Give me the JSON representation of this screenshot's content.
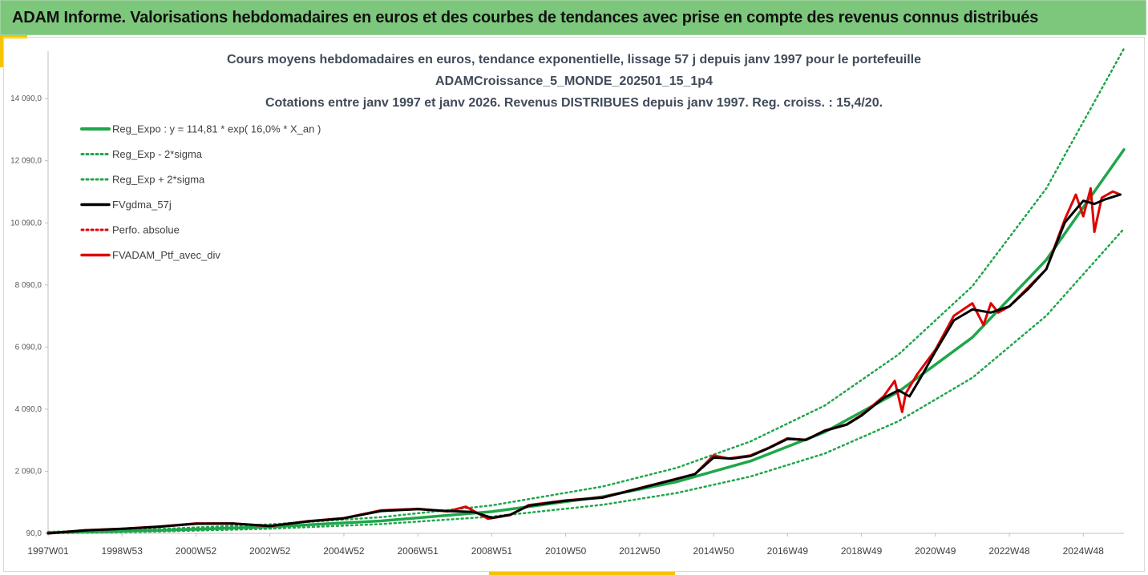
{
  "header": {
    "title": "ADAM Informe. Valorisations hebdomadaires en euros et des courbes de tendances avec prise en compte des revenus connus distribués"
  },
  "colors": {
    "banner": "#7dc77c",
    "accent": "#f5c400",
    "reg_expo": "#1fa64a",
    "sigma": "#1fa64a",
    "fvgdma": "#000000",
    "perfo": "#e00000",
    "ptf": "#e00000"
  },
  "chart_data": {
    "type": "line",
    "title_lines": [
      "Cours moyens hebdomadaires  en euros, tendance exponentielle, lissage 57 j depuis janv 1997 pour le portefeuille",
      "ADAMCroissance_5_MONDE_202501_15_1p4",
      "Cotations entre janv 1997 et janv 2026. Revenus DISTRIBUES depuis janv 1997. Reg. croiss. : 15,4/20."
    ],
    "x_range": [
      1997.0,
      2026.1
    ],
    "ylim": [
      90,
      15100
    ],
    "y_ticks": [
      {
        "value": 90,
        "label": "90,0"
      },
      {
        "value": 2090,
        "label": "2 090,0"
      },
      {
        "value": 4090,
        "label": "4 090,0"
      },
      {
        "value": 6090,
        "label": "6 090,0"
      },
      {
        "value": 8090,
        "label": "8 090,0"
      },
      {
        "value": 10090,
        "label": "10 090,0"
      },
      {
        "value": 12090,
        "label": "12 090,0"
      },
      {
        "value": 14090,
        "label": "14 090,0"
      }
    ],
    "x_ticks": [
      {
        "year": 1997.0,
        "label": "1997W01"
      },
      {
        "year": 1999.0,
        "label": "1998W53"
      },
      {
        "year": 2001.0,
        "label": "2000W52"
      },
      {
        "year": 2003.0,
        "label": "2002W52"
      },
      {
        "year": 2005.0,
        "label": "2004W52"
      },
      {
        "year": 2007.0,
        "label": "2006W51"
      },
      {
        "year": 2009.0,
        "label": "2008W51"
      },
      {
        "year": 2011.0,
        "label": "2010W50"
      },
      {
        "year": 2013.0,
        "label": "2012W50"
      },
      {
        "year": 2015.0,
        "label": "2014W50"
      },
      {
        "year": 2017.0,
        "label": "2016W49"
      },
      {
        "year": 2019.0,
        "label": "2018W49"
      },
      {
        "year": 2021.0,
        "label": "2020W49"
      },
      {
        "year": 2023.0,
        "label": "2022W48"
      },
      {
        "year": 2025.0,
        "label": "2024W48"
      }
    ],
    "legend": [
      {
        "key": "reg_expo",
        "label": "Reg_Expo : y = 114,81 * exp( 16,0% *  X_an )",
        "style": "solid-green"
      },
      {
        "key": "sigma_minus",
        "label": "Reg_Exp - 2*sigma",
        "style": "dotted-green"
      },
      {
        "key": "sigma_plus",
        "label": "Reg_Exp + 2*sigma",
        "style": "dotted-green"
      },
      {
        "key": "fvgdma",
        "label": "FVgdma_57j",
        "style": "solid-black"
      },
      {
        "key": "perfo",
        "label": "Perfo. absolue",
        "style": "dotted-red"
      },
      {
        "key": "ptf",
        "label": "FVADAM_Ptf_avec_div",
        "style": "solid-red"
      }
    ],
    "legend_position": "top-left",
    "grid": false,
    "series": [
      {
        "key": "reg_expo",
        "x": [
          1997.0,
          2000.0,
          2003.0,
          2006.0,
          2009.0,
          2012.0,
          2014.0,
          2016.0,
          2018.0,
          2020.0,
          2022.0,
          2024.0,
          2026.1
        ],
        "y": [
          115,
          185,
          300,
          490,
          790,
          1270,
          1750,
          2420,
          3350,
          4650,
          6400,
          8900,
          12450
        ]
      },
      {
        "key": "sigma_plus",
        "x": [
          1997.0,
          2000.0,
          2003.0,
          2006.0,
          2009.0,
          2012.0,
          2014.0,
          2016.0,
          2018.0,
          2020.0,
          2022.0,
          2024.0,
          2026.1
        ],
        "y": [
          140,
          230,
          380,
          610,
          990,
          1600,
          2200,
          3050,
          4200,
          5850,
          8050,
          11200,
          15700
        ]
      },
      {
        "key": "sigma_minus",
        "x": [
          1997.0,
          2000.0,
          2003.0,
          2006.0,
          2009.0,
          2012.0,
          2014.0,
          2016.0,
          2018.0,
          2020.0,
          2022.0,
          2024.0,
          2026.1
        ],
        "y": [
          90,
          150,
          240,
          390,
          630,
          1010,
          1390,
          1920,
          2660,
          3700,
          5100,
          7100,
          9900
        ]
      },
      {
        "key": "ptf",
        "x": [
          1997.0,
          1998.0,
          1999.0,
          2000.0,
          2001.0,
          2002.0,
          2003.0,
          2004.0,
          2005.0,
          2006.0,
          2007.0,
          2007.8,
          2008.3,
          2008.9,
          2009.5,
          2010.0,
          2011.0,
          2012.0,
          2013.0,
          2014.0,
          2014.5,
          2015.0,
          2015.4,
          2016.0,
          2016.5,
          2017.0,
          2017.5,
          2018.0,
          2018.6,
          2019.0,
          2019.6,
          2019.9,
          2020.1,
          2020.2,
          2020.5,
          2021.0,
          2021.5,
          2022.0,
          2022.3,
          2022.5,
          2022.7,
          2023.0,
          2023.5,
          2024.0,
          2024.5,
          2024.8,
          2025.0,
          2025.2,
          2025.3,
          2025.5,
          2025.8,
          2026.0
        ],
        "y": [
          90,
          190,
          240,
          310,
          410,
          410,
          320,
          480,
          580,
          830,
          880,
          800,
          950,
          560,
          680,
          1000,
          1150,
          1250,
          1550,
          1850,
          2000,
          2600,
          2500,
          2600,
          2850,
          3150,
          3100,
          3400,
          3600,
          3900,
          4500,
          5000,
          4000,
          4600,
          5200,
          6000,
          7100,
          7500,
          6800,
          7500,
          7200,
          7400,
          8000,
          8600,
          10200,
          11000,
          10300,
          11200,
          9800,
          10900,
          11100,
          11000
        ]
      },
      {
        "key": "fvgdma",
        "x": [
          1997.0,
          1998.0,
          1999.0,
          2000.0,
          2001.0,
          2002.0,
          2003.0,
          2004.0,
          2005.0,
          2006.0,
          2007.0,
          2007.8,
          2008.5,
          2009.0,
          2009.5,
          2010.0,
          2011.0,
          2012.0,
          2013.0,
          2014.0,
          2014.5,
          2015.0,
          2015.5,
          2016.0,
          2016.5,
          2017.0,
          2017.5,
          2018.0,
          2018.6,
          2019.0,
          2019.6,
          2020.0,
          2020.3,
          2020.6,
          2021.0,
          2021.5,
          2022.0,
          2022.5,
          2023.0,
          2023.5,
          2024.0,
          2024.5,
          2025.0,
          2025.3,
          2025.6,
          2026.0
        ],
        "y": [
          90,
          185,
          235,
          305,
          400,
          405,
          330,
          470,
          575,
          810,
          870,
          810,
          780,
          590,
          690,
          980,
          1140,
          1240,
          1540,
          1840,
          2000,
          2530,
          2500,
          2580,
          2840,
          3130,
          3100,
          3390,
          3590,
          3880,
          4450,
          4700,
          4500,
          5100,
          5950,
          6950,
          7300,
          7200,
          7400,
          7950,
          8600,
          10100,
          10800,
          10700,
          10850,
          11000
        ]
      }
    ]
  }
}
